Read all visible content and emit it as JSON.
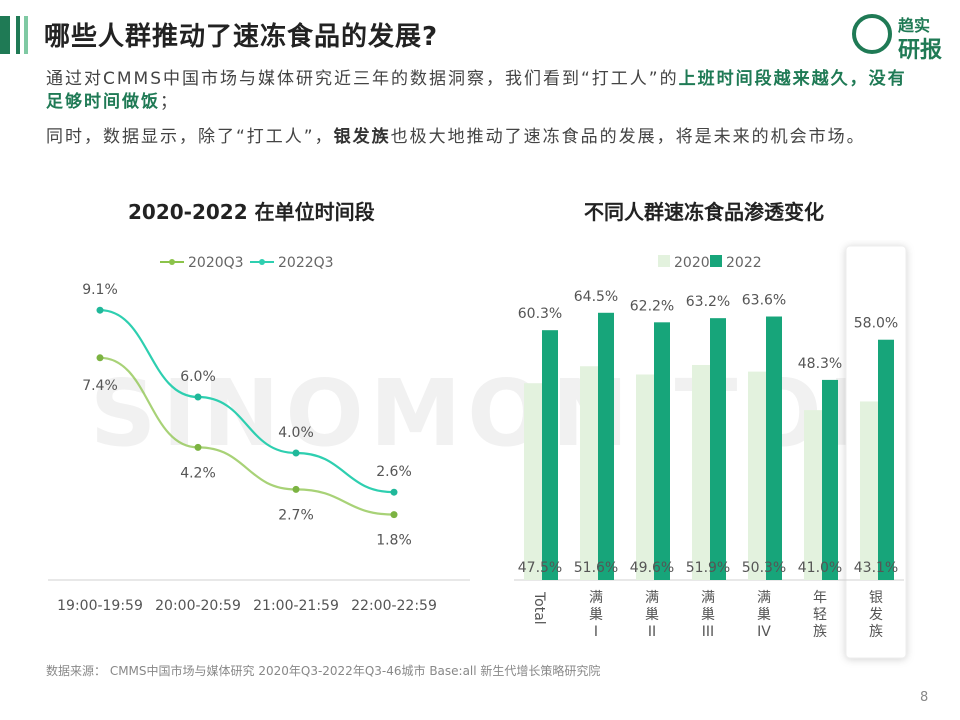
{
  "header": {
    "title": "哪些人群推动了速冻食品的发展?",
    "logo_line1": "趋实",
    "logo_line2": "研报"
  },
  "intro": {
    "p1_prefix": "通过对CMMS中国市场与媒体研究近三年的数据洞察，我们看到“打工人”的",
    "p1_highlight": "上班时间段越来越久，没有足够时间做饭",
    "p1_suffix": "；",
    "p2_prefix": "同时，数据显示，除了“打工人”，",
    "p2_bold": "银发族",
    "p2_suffix": "也极大地推动了速冻食品的发展，将是未来的机会市场。"
  },
  "watermark": "SINOMONITOR",
  "chart_data": [
    {
      "type": "line",
      "title": "2020-2022 在单位时间段",
      "categories": [
        "19:00-19:59",
        "20:00-20:59",
        "21:00-21:59",
        "22:00-22:59"
      ],
      "series": [
        {
          "name": "2020Q3",
          "values": [
            7.4,
            4.2,
            2.7,
            1.8
          ],
          "labels": [
            "7.4%",
            "4.2%",
            "2.7%",
            "1.8%"
          ],
          "color": "#8bc34a"
        },
        {
          "name": "2022Q3",
          "values": [
            9.1,
            6.0,
            4.0,
            2.6
          ],
          "labels": [
            "9.1%",
            "6.0%",
            "4.0%",
            "2.6%"
          ],
          "color": "#2ecfb0"
        }
      ],
      "ylim": [
        0,
        10
      ],
      "legend": "top"
    },
    {
      "type": "bar",
      "title": "不同人群速冻食品渗透变化",
      "categories": [
        "Total",
        "满巢I",
        "满巢II",
        "满巢III",
        "满巢IV",
        "年轻族",
        "银发族"
      ],
      "series": [
        {
          "name": "2020",
          "values": [
            47.5,
            51.6,
            49.6,
            51.9,
            50.3,
            41.0,
            43.1
          ],
          "labels": [
            "47.5%",
            "51.6%",
            "49.6%",
            "51.9%",
            "50.3%",
            "41.0%",
            "43.1%"
          ],
          "color": "#e3f2de"
        },
        {
          "name": "2022",
          "values": [
            60.3,
            64.5,
            62.2,
            63.2,
            63.6,
            48.3,
            58.0
          ],
          "labels": [
            "60.3%",
            "64.5%",
            "62.2%",
            "63.2%",
            "63.6%",
            "48.3%",
            "58.0%"
          ],
          "color": "#17a57a"
        }
      ],
      "ylim": [
        0,
        70
      ],
      "legend": "top",
      "highlighted_category": "银发族"
    }
  ],
  "footer": {
    "source": "数据来源：  CMMS中国市场与媒体研究 2020年Q3-2022年Q3-46城市 Base:all   新生代增长策略研究院",
    "page_number": "8"
  }
}
